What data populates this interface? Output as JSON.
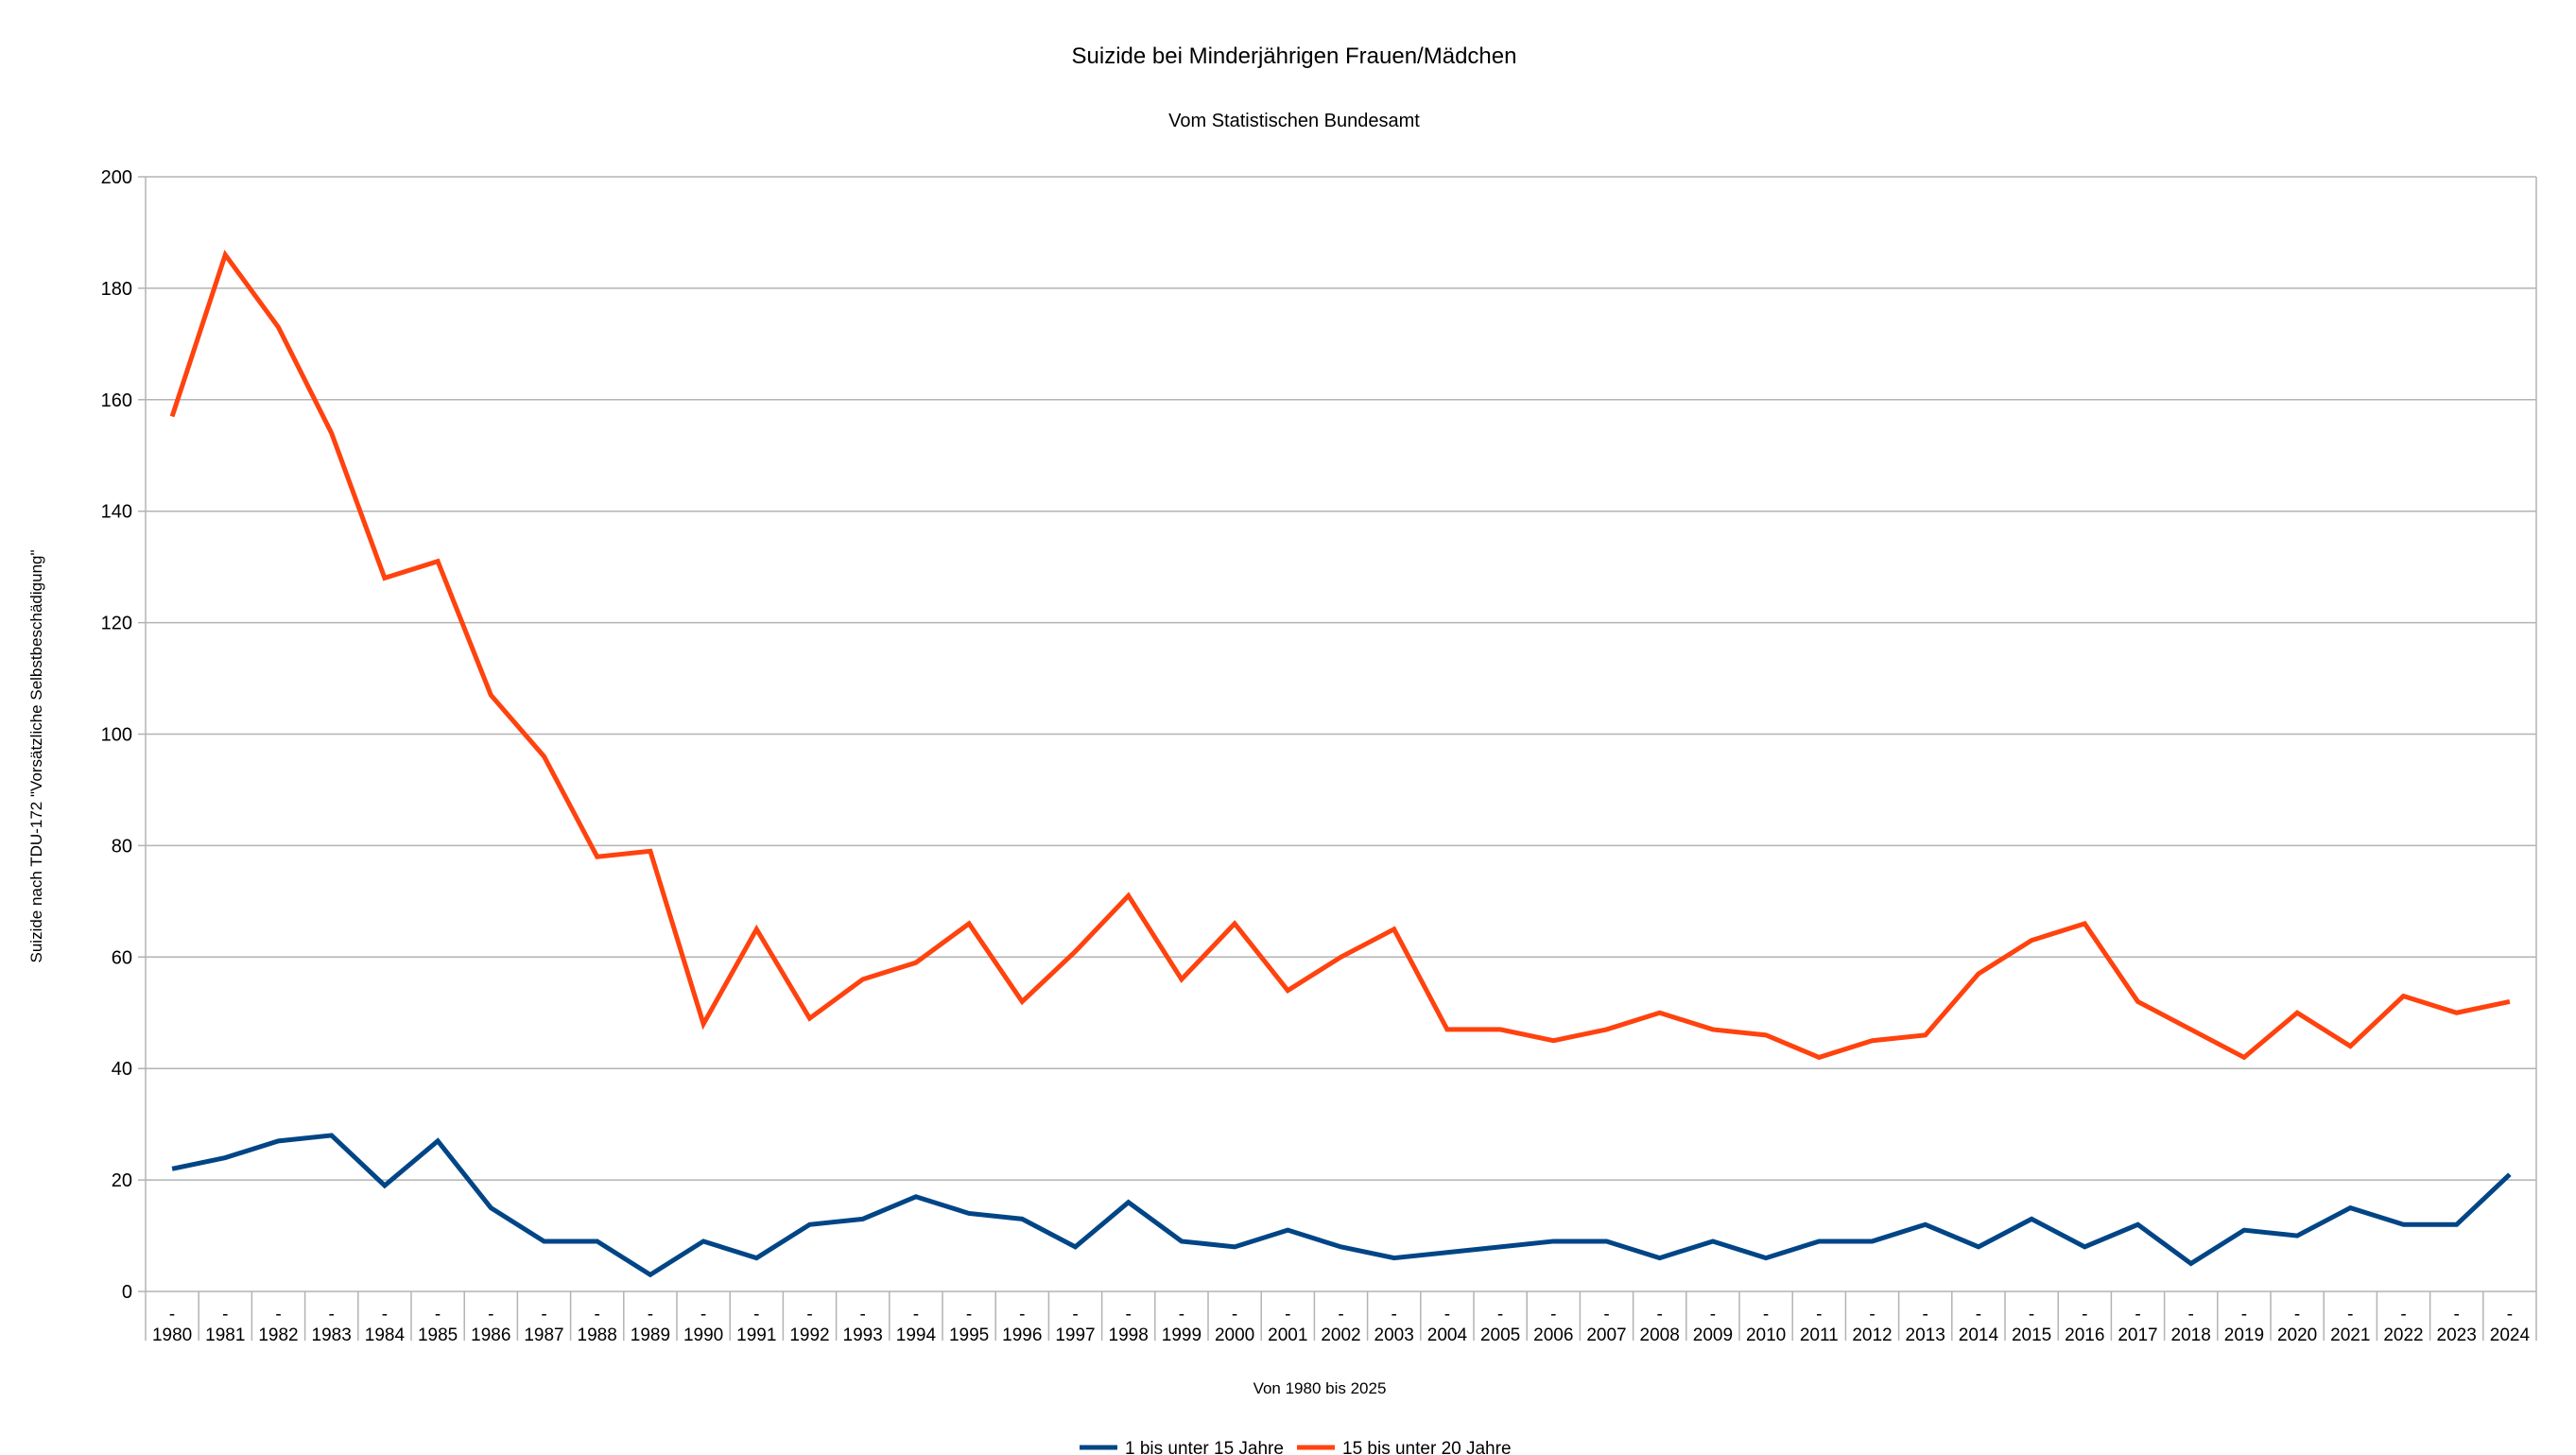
{
  "chart_data": {
    "type": "line",
    "title": "Suizide bei Minderjährigen Frauen/Mädchen",
    "subtitle": "Vom Statistischen Bundesamt",
    "xlabel": "Von 1980 bis 2025",
    "ylabel": "Suizide nach TDU-172 \"Vorsätzliche Selbstbeschädigung\"",
    "category_prefix": "-",
    "categories": [
      "1980",
      "1981",
      "1982",
      "1983",
      "1984",
      "1985",
      "1986",
      "1987",
      "1988",
      "1989",
      "1990",
      "1991",
      "1992",
      "1993",
      "1994",
      "1995",
      "1996",
      "1997",
      "1998",
      "1999",
      "2000",
      "2001",
      "2002",
      "2003",
      "2004",
      "2005",
      "2006",
      "2007",
      "2008",
      "2009",
      "2010",
      "2011",
      "2012",
      "2013",
      "2014",
      "2015",
      "2016",
      "2017",
      "2018",
      "2019",
      "2020",
      "2021",
      "2022",
      "2023",
      "2024"
    ],
    "ylim": [
      0,
      200
    ],
    "yticks": [
      0,
      20,
      40,
      60,
      80,
      100,
      120,
      140,
      160,
      180,
      200
    ],
    "grid": true,
    "legend_position": "bottom",
    "series": [
      {
        "name": "1 bis unter 15 Jahre",
        "color": "#004586",
        "values": [
          22,
          24,
          27,
          28,
          19,
          27,
          15,
          9,
          9,
          3,
          9,
          6,
          12,
          13,
          17,
          14,
          13,
          8,
          16,
          9,
          8,
          11,
          8,
          6,
          7,
          8,
          9,
          9,
          6,
          9,
          6,
          9,
          9,
          12,
          8,
          13,
          8,
          12,
          5,
          11,
          10,
          15,
          12,
          12,
          21
        ]
      },
      {
        "name": "15 bis unter 20 Jahre",
        "color": "#ff420e",
        "values": [
          157,
          186,
          173,
          154,
          128,
          131,
          107,
          96,
          78,
          79,
          48,
          65,
          49,
          56,
          59,
          66,
          52,
          61,
          71,
          56,
          66,
          54,
          60,
          65,
          47,
          47,
          45,
          47,
          50,
          47,
          46,
          42,
          45,
          46,
          57,
          63,
          66,
          52,
          47,
          42,
          50,
          44,
          53,
          50,
          52
        ]
      }
    ]
  }
}
